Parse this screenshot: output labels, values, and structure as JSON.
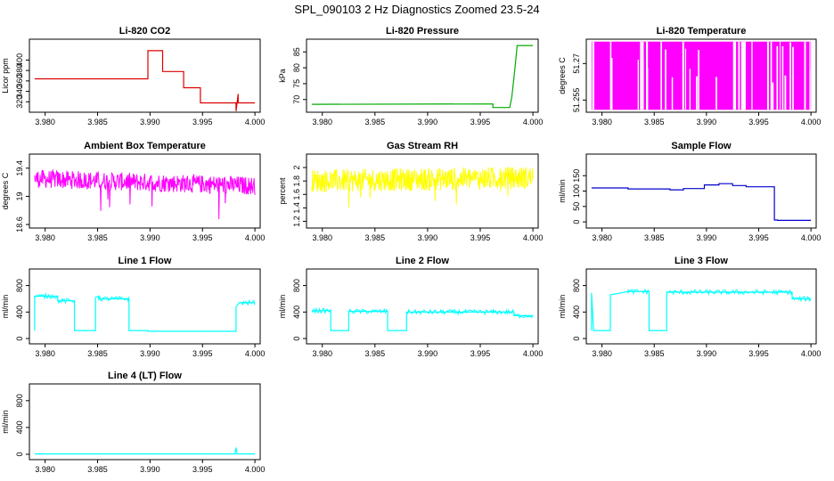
{
  "figure_title": "SPL_090103  2 Hz Diagnostics Zoomed 23.5-24",
  "chart_data": [
    {
      "type": "line",
      "title": "Li-820 CO2",
      "ylabel": "Licor ppm",
      "xlim": [
        3.9785,
        4.0005
      ],
      "ylim": [
        300,
        440
      ],
      "xticks": [
        "3.980",
        "3.985",
        "3.990",
        "3.995",
        "4.000"
      ],
      "yticks": [
        320,
        340,
        360,
        380,
        400
      ],
      "color": "#dd0000",
      "x": [
        3.979,
        3.9898,
        3.9898,
        3.9912,
        3.9912,
        3.9932,
        3.9932,
        3.9948,
        3.9948,
        3.9982,
        3.9982,
        3.9984,
        3.9984,
        4.0
      ],
      "y": [
        364,
        364,
        418,
        418,
        378,
        378,
        347,
        347,
        318,
        318,
        302,
        335,
        318,
        318
      ]
    },
    {
      "type": "line",
      "title": "Li-820 Pressure",
      "ylabel": "kPa",
      "xlim": [
        3.9785,
        4.0005
      ],
      "ylim": [
        66,
        89
      ],
      "xticks": [
        "3.980",
        "3.985",
        "3.990",
        "3.995",
        "4.000"
      ],
      "yticks": [
        70,
        75,
        80,
        85
      ],
      "color": "#00aa00",
      "x": [
        3.979,
        3.9962,
        3.9962,
        3.9978,
        3.998,
        3.9983,
        3.9985,
        4.0
      ],
      "y": [
        68.5,
        68.6,
        67.5,
        67.5,
        71,
        80,
        87,
        87
      ]
    },
    {
      "type": "line",
      "title": "Li-820 Temperature",
      "ylabel": "degrees C",
      "xlim": [
        3.9785,
        4.0005
      ],
      "ylim": [
        51.25,
        51.28
      ],
      "xticks": [
        "3.980",
        "3.985",
        "3.990",
        "3.995",
        "4.000"
      ],
      "yticks": [
        51.255,
        51.27
      ],
      "color": "#ff00ff",
      "x": [
        3.979,
        4.0
      ],
      "y": [
        51.25,
        51.28
      ]
    },
    {
      "type": "line",
      "title": "Ambient Box Temperature",
      "ylabel": "degrees C",
      "xlim": [
        3.9785,
        4.0005
      ],
      "ylim": [
        18.55,
        19.6
      ],
      "xticks": [
        "3.980",
        "3.985",
        "3.990",
        "3.995",
        "4.000"
      ],
      "yticks": [
        18.6,
        19.0,
        19.4
      ],
      "color": "#ff00ff",
      "x": [
        3.979,
        4.0
      ],
      "y": [
        19.25,
        19.15
      ]
    },
    {
      "type": "line",
      "title": "Gas Stream RH",
      "ylabel": "percent",
      "xlim": [
        3.9785,
        4.0005
      ],
      "ylim": [
        1.1,
        2.2
      ],
      "xticks": [
        "3.980",
        "3.985",
        "3.990",
        "3.995",
        "4.000"
      ],
      "yticks": [
        1.2,
        1.4,
        1.6,
        1.8,
        2.0
      ],
      "color": "#ffff00",
      "x": [
        3.979,
        4.0
      ],
      "y": [
        1.8,
        1.85
      ]
    },
    {
      "type": "line",
      "title": "Sample Flow",
      "ylabel": "ml/min",
      "xlim": [
        3.9785,
        4.0005
      ],
      "ylim": [
        -20,
        220
      ],
      "xticks": [
        "3.980",
        "3.985",
        "3.990",
        "3.995",
        "4.000"
      ],
      "yticks": [
        0,
        50,
        100,
        150
      ],
      "color": "#0000cc",
      "x": [
        3.979,
        3.9825,
        3.9825,
        3.9865,
        3.9865,
        3.9878,
        3.9878,
        3.9898,
        3.9898,
        3.9912,
        3.9912,
        3.9925,
        3.9925,
        3.9938,
        3.9938,
        3.9965,
        3.9965,
        3.9968,
        3.9968,
        4.0
      ],
      "y": [
        110,
        110,
        107,
        107,
        104,
        104,
        108,
        108,
        120,
        120,
        124,
        124,
        118,
        118,
        114,
        114,
        6,
        6,
        5,
        5
      ]
    },
    {
      "type": "line",
      "title": "Line 1 Flow",
      "ylabel": "ml/min",
      "xlim": [
        3.9785,
        4.0005
      ],
      "ylim": [
        -80,
        1050
      ],
      "xticks": [
        "3.980",
        "3.985",
        "3.990",
        "3.995",
        "4.000"
      ],
      "yticks": [
        0,
        400,
        800
      ],
      "color": "#00ffff",
      "x": [
        3.979,
        3.979,
        3.9812,
        3.9812,
        3.9828,
        3.9828,
        3.9848,
        3.9848,
        3.9851,
        3.9851,
        3.988,
        3.988,
        3.9898,
        3.9898,
        3.9982,
        3.9982,
        3.9985,
        4.0
      ],
      "y": [
        120,
        640,
        640,
        570,
        570,
        120,
        120,
        620,
        640,
        600,
        600,
        120,
        120,
        110,
        110,
        480,
        540,
        540
      ]
    },
    {
      "type": "line",
      "title": "Line 2 Flow",
      "ylabel": "ml/min",
      "xlim": [
        3.9785,
        4.0005
      ],
      "ylim": [
        -80,
        1050
      ],
      "xticks": [
        "3.980",
        "3.985",
        "3.990",
        "3.995",
        "4.000"
      ],
      "yticks": [
        0,
        400,
        800
      ],
      "color": "#00ffff",
      "x": [
        3.979,
        3.9808,
        3.9808,
        3.9825,
        3.9825,
        3.9862,
        3.9862,
        3.988,
        3.988,
        3.9982,
        3.9982,
        4.0
      ],
      "y": [
        420,
        420,
        120,
        120,
        410,
        410,
        120,
        120,
        400,
        400,
        345,
        345
      ]
    },
    {
      "type": "line",
      "title": "Line 3 Flow",
      "ylabel": "ml/min",
      "xlim": [
        3.9785,
        4.0005
      ],
      "ylim": [
        -80,
        1050
      ],
      "xticks": [
        "3.980",
        "3.985",
        "3.990",
        "3.995",
        "4.000"
      ],
      "yticks": [
        0,
        400,
        800
      ],
      "color": "#00ffff",
      "x": [
        3.979,
        3.979,
        3.9792,
        3.9808,
        3.9808,
        3.9825,
        3.9825,
        3.9845,
        3.9845,
        3.9862,
        3.9862,
        3.9982,
        3.9982,
        4.0
      ],
      "y": [
        120,
        690,
        120,
        120,
        660,
        710,
        710,
        710,
        120,
        120,
        700,
        700,
        600,
        600
      ]
    },
    {
      "type": "line",
      "title": "Line 4 (LT) Flow",
      "ylabel": "ml/min",
      "xlim": [
        3.9785,
        4.0005
      ],
      "ylim": [
        -80,
        1050
      ],
      "xticks": [
        "3.980",
        "3.985",
        "3.990",
        "3.995",
        "4.000"
      ],
      "yticks": [
        0,
        400,
        800
      ],
      "color": "#00ffff",
      "x": [
        3.979,
        3.9981,
        3.9982,
        3.9983,
        4.0
      ],
      "y": [
        5,
        5,
        100,
        5,
        5
      ]
    }
  ]
}
